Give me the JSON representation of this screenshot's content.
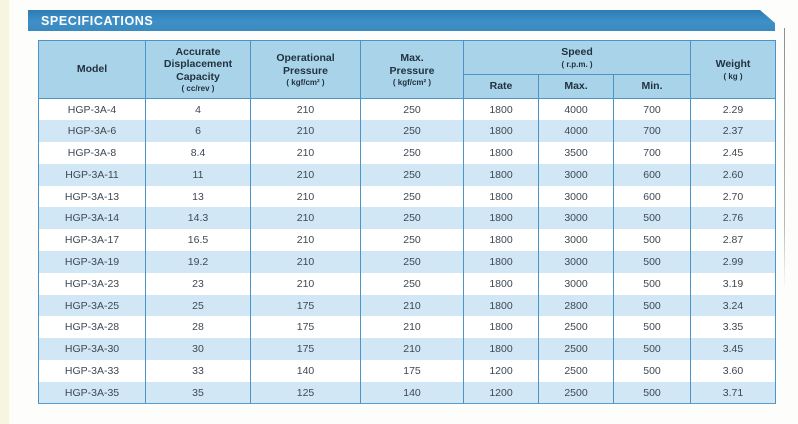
{
  "page": {
    "banner_title": "SPECIFICATIONS"
  },
  "table": {
    "header": {
      "model": {
        "label": "Model"
      },
      "capacity": {
        "label": "Accurate\nDisplacement\nCapacity",
        "unit": "( cc/rev )"
      },
      "op_pressure": {
        "label": "Operational\nPressure",
        "unit": "( kgf/cm² )"
      },
      "max_pressure": {
        "label": "Max.\nPressure",
        "unit": "( kgf/cm² )"
      },
      "speed": {
        "label": "Speed",
        "unit": "( r.p.m. )",
        "sub": {
          "rate": "Rate",
          "max": "Max.",
          "min": "Min."
        }
      },
      "weight": {
        "label": "Weight",
        "unit": "( kg )"
      }
    },
    "row_keys": [
      "model",
      "capacity",
      "op_pressure",
      "max_pressure",
      "rate",
      "max",
      "min",
      "weight"
    ],
    "rows": [
      {
        "model": "HGP-3A-4",
        "capacity": "4",
        "op_pressure": "210",
        "max_pressure": "250",
        "rate": "1800",
        "max": "4000",
        "min": "700",
        "weight": "2.29"
      },
      {
        "model": "HGP-3A-6",
        "capacity": "6",
        "op_pressure": "210",
        "max_pressure": "250",
        "rate": "1800",
        "max": "4000",
        "min": "700",
        "weight": "2.37"
      },
      {
        "model": "HGP-3A-8",
        "capacity": "8.4",
        "op_pressure": "210",
        "max_pressure": "250",
        "rate": "1800",
        "max": "3500",
        "min": "700",
        "weight": "2.45"
      },
      {
        "model": "HGP-3A-11",
        "capacity": "11",
        "op_pressure": "210",
        "max_pressure": "250",
        "rate": "1800",
        "max": "3000",
        "min": "600",
        "weight": "2.60"
      },
      {
        "model": "HGP-3A-13",
        "capacity": "13",
        "op_pressure": "210",
        "max_pressure": "250",
        "rate": "1800",
        "max": "3000",
        "min": "600",
        "weight": "2.70"
      },
      {
        "model": "HGP-3A-14",
        "capacity": "14.3",
        "op_pressure": "210",
        "max_pressure": "250",
        "rate": "1800",
        "max": "3000",
        "min": "500",
        "weight": "2.76"
      },
      {
        "model": "HGP-3A-17",
        "capacity": "16.5",
        "op_pressure": "210",
        "max_pressure": "250",
        "rate": "1800",
        "max": "3000",
        "min": "500",
        "weight": "2.87"
      },
      {
        "model": "HGP-3A-19",
        "capacity": "19.2",
        "op_pressure": "210",
        "max_pressure": "250",
        "rate": "1800",
        "max": "3000",
        "min": "500",
        "weight": "2.99"
      },
      {
        "model": "HGP-3A-23",
        "capacity": "23",
        "op_pressure": "210",
        "max_pressure": "250",
        "rate": "1800",
        "max": "3000",
        "min": "500",
        "weight": "3.19"
      },
      {
        "model": "HGP-3A-25",
        "capacity": "25",
        "op_pressure": "175",
        "max_pressure": "210",
        "rate": "1800",
        "max": "2800",
        "min": "500",
        "weight": "3.24"
      },
      {
        "model": "HGP-3A-28",
        "capacity": "28",
        "op_pressure": "175",
        "max_pressure": "210",
        "rate": "1800",
        "max": "2500",
        "min": "500",
        "weight": "3.35"
      },
      {
        "model": "HGP-3A-30",
        "capacity": "30",
        "op_pressure": "175",
        "max_pressure": "210",
        "rate": "1800",
        "max": "2500",
        "min": "500",
        "weight": "3.45"
      },
      {
        "model": "HGP-3A-33",
        "capacity": "33",
        "op_pressure": "140",
        "max_pressure": "175",
        "rate": "1200",
        "max": "2500",
        "min": "500",
        "weight": "3.60"
      },
      {
        "model": "HGP-3A-35",
        "capacity": "35",
        "op_pressure": "125",
        "max_pressure": "140",
        "rate": "1200",
        "max": "2500",
        "min": "500",
        "weight": "3.71"
      }
    ]
  },
  "colors": {
    "banner_blue": "#3a8ac0",
    "header_bg": "#a8d3e9",
    "stripe_bg": "#d2e7f5",
    "border_blue": "#4c93c6",
    "text_dark": "#22323f",
    "edge_strip": "#f7f4e0"
  }
}
